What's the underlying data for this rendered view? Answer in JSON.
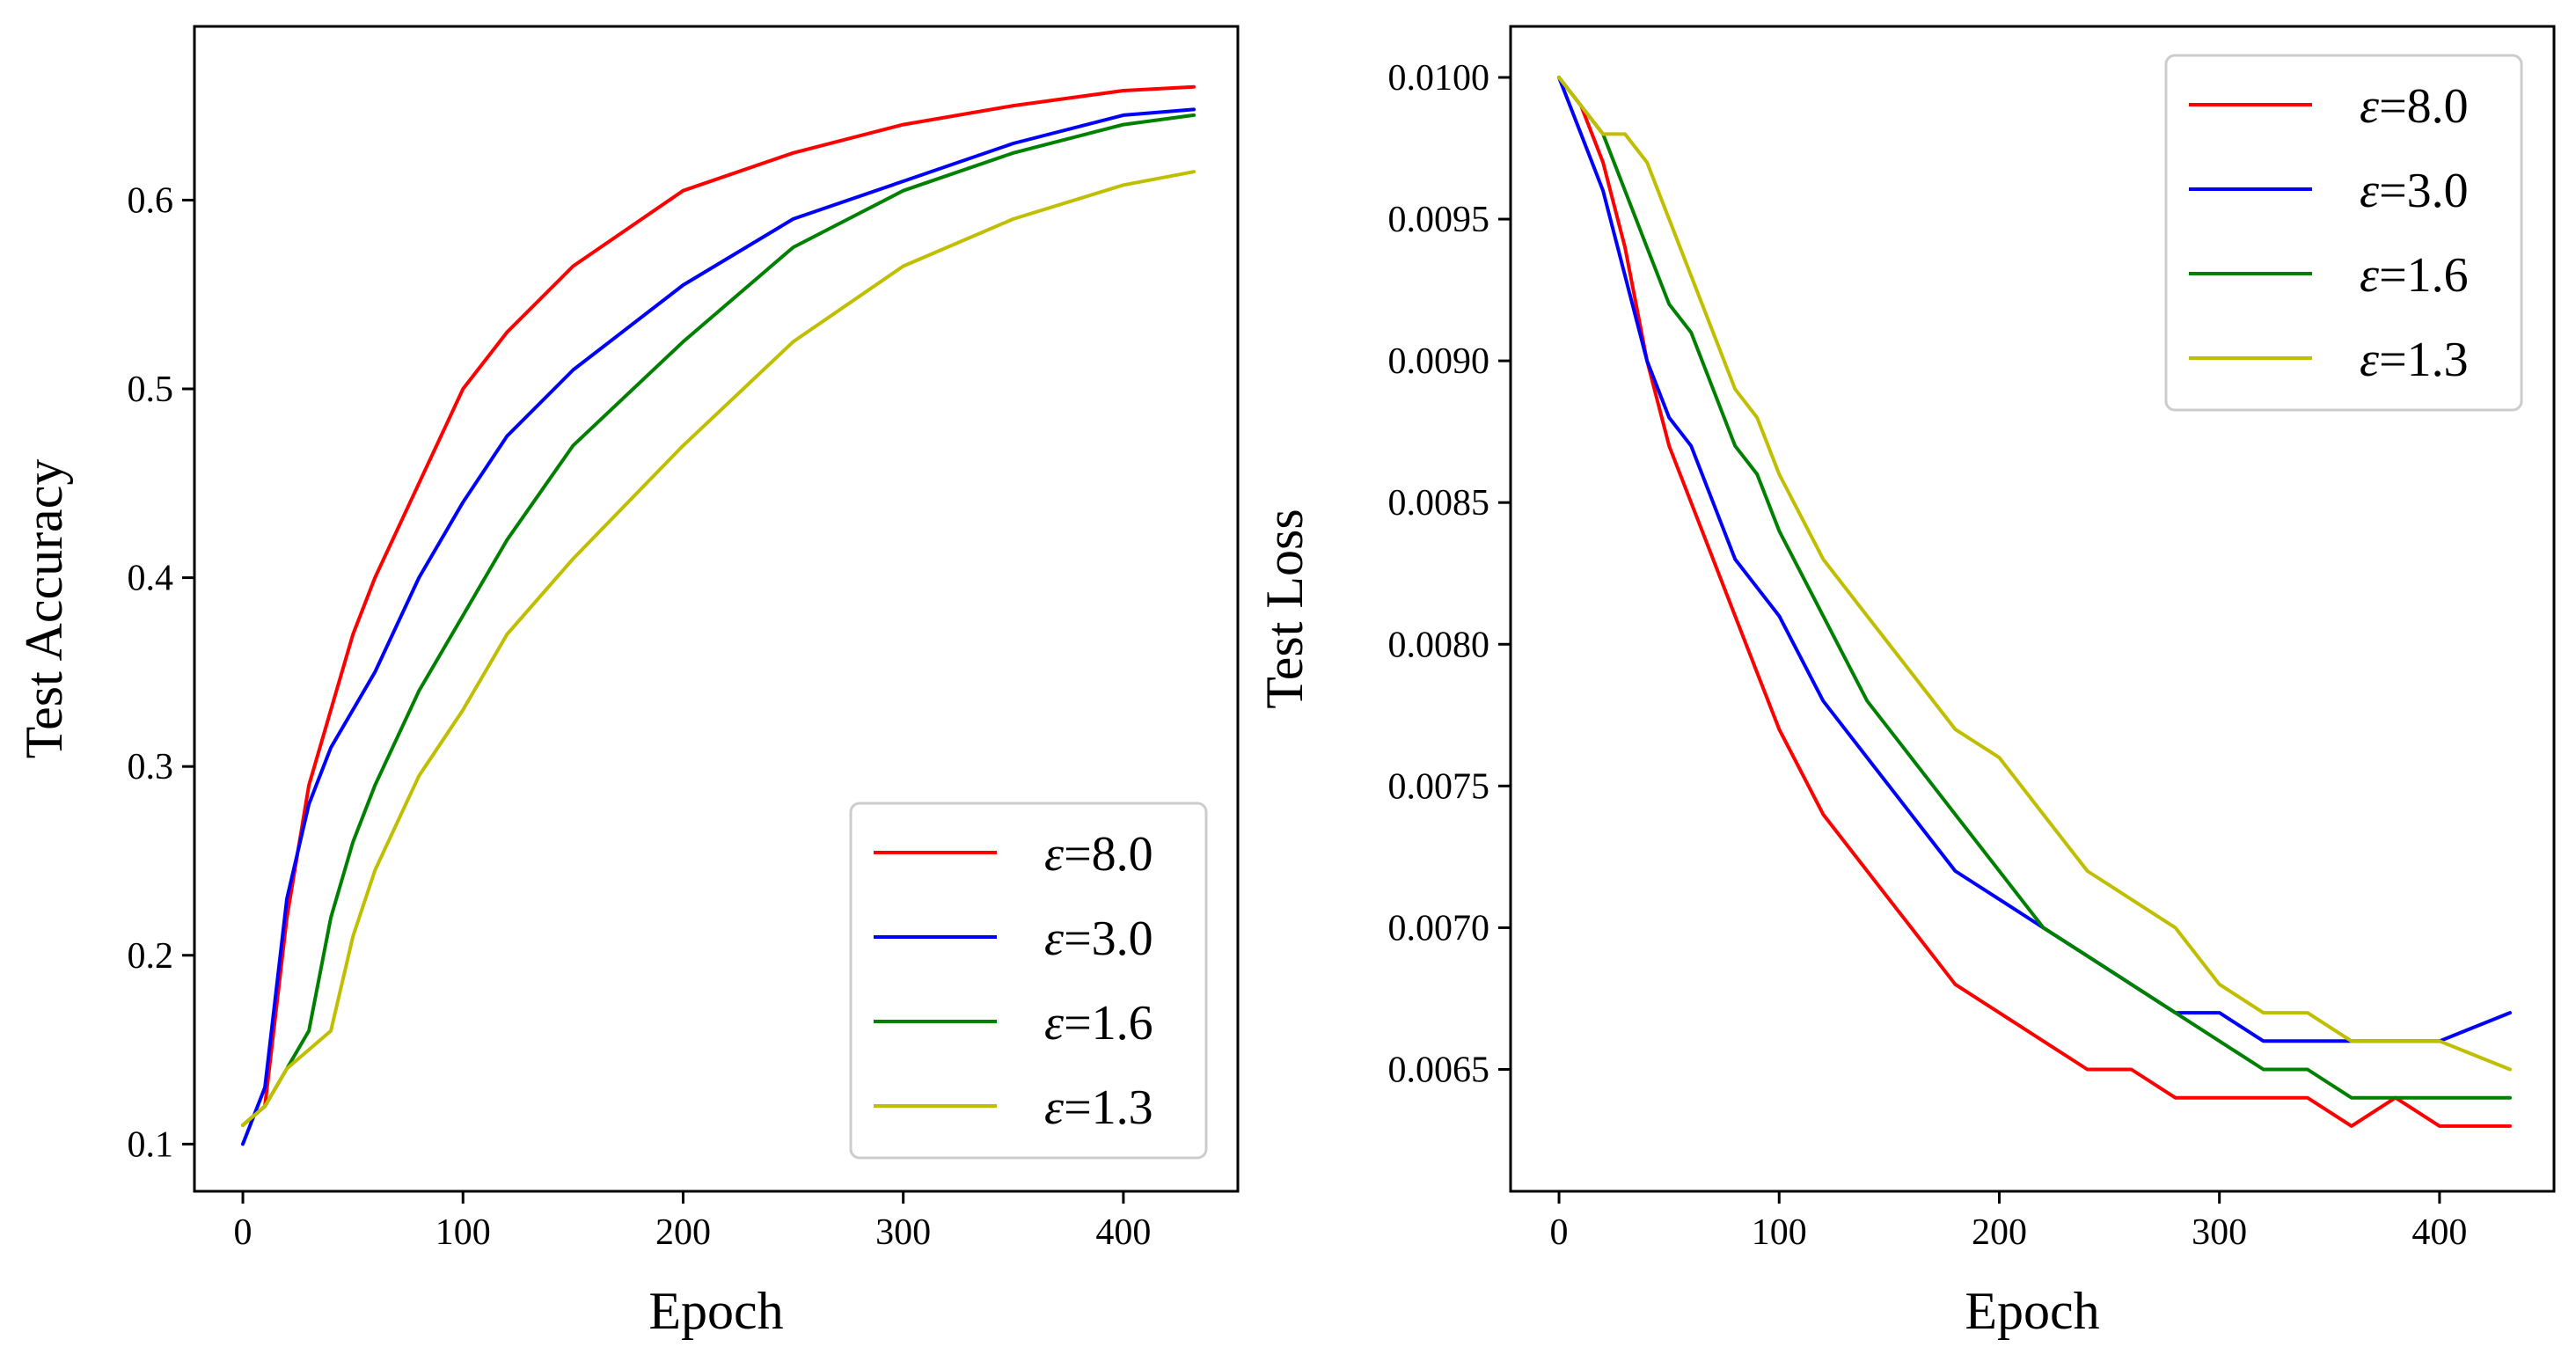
{
  "figure": {
    "description_free": true
  },
  "colors": {
    "red": "#ff0000",
    "blue": "#0000ff",
    "green": "#008000",
    "yellow": "#bfbf00"
  },
  "chart_data": [
    {
      "type": "line",
      "title": "",
      "xlabel": "Epoch",
      "ylabel": "Test Accuracy",
      "xlim": [
        -22,
        452
      ],
      "ylim": [
        0.075,
        0.692
      ],
      "xticks": [
        0,
        100,
        200,
        300,
        400
      ],
      "xtick_labels": [
        "0",
        "100",
        "200",
        "300",
        "400"
      ],
      "yticks": [
        0.1,
        0.2,
        0.3,
        0.4,
        0.5,
        0.6
      ],
      "ytick_labels": [
        "0.1",
        "0.2",
        "0.3",
        "0.4",
        "0.5",
        "0.6"
      ],
      "grid": false,
      "legend_position": "bottom-right",
      "x": [
        0,
        10,
        20,
        30,
        40,
        50,
        60,
        80,
        100,
        120,
        150,
        200,
        250,
        300,
        350,
        400,
        432
      ],
      "series": [
        {
          "name": "ε=8.0",
          "symbol": "ε",
          "suffix": "=8.0",
          "color": "#ff0000",
          "values": [
            0.11,
            0.12,
            0.22,
            0.29,
            0.33,
            0.37,
            0.4,
            0.45,
            0.5,
            0.53,
            0.565,
            0.605,
            0.625,
            0.64,
            0.65,
            0.658,
            0.66
          ]
        },
        {
          "name": "ε=3.0",
          "symbol": "ε",
          "suffix": "=3.0",
          "color": "#0000ff",
          "values": [
            0.1,
            0.13,
            0.23,
            0.28,
            0.31,
            0.33,
            0.35,
            0.4,
            0.44,
            0.475,
            0.51,
            0.555,
            0.59,
            0.61,
            0.63,
            0.645,
            0.648
          ]
        },
        {
          "name": "ε=1.6",
          "symbol": "ε",
          "suffix": "=1.6",
          "color": "#008000",
          "values": [
            0.11,
            0.12,
            0.14,
            0.16,
            0.22,
            0.26,
            0.29,
            0.34,
            0.38,
            0.42,
            0.47,
            0.525,
            0.575,
            0.605,
            0.625,
            0.64,
            0.645
          ]
        },
        {
          "name": "ε=1.3",
          "symbol": "ε",
          "suffix": "=1.3",
          "color": "#bfbf00",
          "values": [
            0.11,
            0.12,
            0.14,
            0.15,
            0.16,
            0.21,
            0.245,
            0.295,
            0.33,
            0.37,
            0.41,
            0.47,
            0.525,
            0.565,
            0.59,
            0.608,
            0.615
          ]
        }
      ]
    },
    {
      "type": "line",
      "title": "",
      "xlabel": "Epoch",
      "ylabel": "Test Loss",
      "xlim": [
        -22,
        452
      ],
      "ylim": [
        0.00607,
        0.01018
      ],
      "xticks": [
        0,
        100,
        200,
        300,
        400
      ],
      "xtick_labels": [
        "0",
        "100",
        "200",
        "300",
        "400"
      ],
      "yticks": [
        0.0065,
        0.007,
        0.0075,
        0.008,
        0.0085,
        0.009,
        0.0095,
        0.01
      ],
      "ytick_labels": [
        "0.0065",
        "0.0070",
        "0.0075",
        "0.0080",
        "0.0085",
        "0.0090",
        "0.0095",
        "0.0100"
      ],
      "grid": false,
      "legend_position": "top-right",
      "x": [
        0,
        10,
        20,
        30,
        40,
        50,
        60,
        70,
        80,
        90,
        100,
        120,
        140,
        160,
        180,
        200,
        220,
        240,
        260,
        280,
        300,
        320,
        340,
        360,
        380,
        400,
        432
      ],
      "series": [
        {
          "name": "ε=8.0",
          "symbol": "ε",
          "suffix": "=8.0",
          "color": "#ff0000",
          "values": [
            0.01,
            0.0099,
            0.0097,
            0.0094,
            0.009,
            0.0087,
            0.0085,
            0.0083,
            0.0081,
            0.0079,
            0.0077,
            0.0074,
            0.0072,
            0.007,
            0.0068,
            0.0067,
            0.0066,
            0.0065,
            0.0065,
            0.0064,
            0.0064,
            0.0064,
            0.0064,
            0.0063,
            0.0064,
            0.0063,
            0.0063
          ]
        },
        {
          "name": "ε=3.0",
          "symbol": "ε",
          "suffix": "=3.0",
          "color": "#0000ff",
          "values": [
            0.01,
            0.0098,
            0.0096,
            0.0093,
            0.009,
            0.0088,
            0.0087,
            0.0085,
            0.0083,
            0.0082,
            0.0081,
            0.0078,
            0.0076,
            0.0074,
            0.0072,
            0.0071,
            0.007,
            0.0069,
            0.0068,
            0.0067,
            0.0067,
            0.0066,
            0.0066,
            0.0066,
            0.0066,
            0.0066,
            0.0067
          ]
        },
        {
          "name": "ε=1.6",
          "symbol": "ε",
          "suffix": "=1.6",
          "color": "#008000",
          "values": [
            0.01,
            0.0099,
            0.0098,
            0.0096,
            0.0094,
            0.0092,
            0.0091,
            0.0089,
            0.0087,
            0.0086,
            0.0084,
            0.0081,
            0.0078,
            0.0076,
            0.0074,
            0.0072,
            0.007,
            0.0069,
            0.0068,
            0.0067,
            0.0066,
            0.0065,
            0.0065,
            0.0064,
            0.0064,
            0.0064,
            0.0064
          ]
        },
        {
          "name": "ε=1.3",
          "symbol": "ε",
          "suffix": "=1.3",
          "color": "#bfbf00",
          "values": [
            0.01,
            0.0099,
            0.0098,
            0.0098,
            0.0097,
            0.0095,
            0.0093,
            0.0091,
            0.0089,
            0.0088,
            0.0086,
            0.0083,
            0.0081,
            0.0079,
            0.0077,
            0.0076,
            0.0074,
            0.0072,
            0.0071,
            0.007,
            0.0068,
            0.0067,
            0.0067,
            0.0066,
            0.0066,
            0.0066,
            0.0065
          ]
        }
      ]
    }
  ]
}
